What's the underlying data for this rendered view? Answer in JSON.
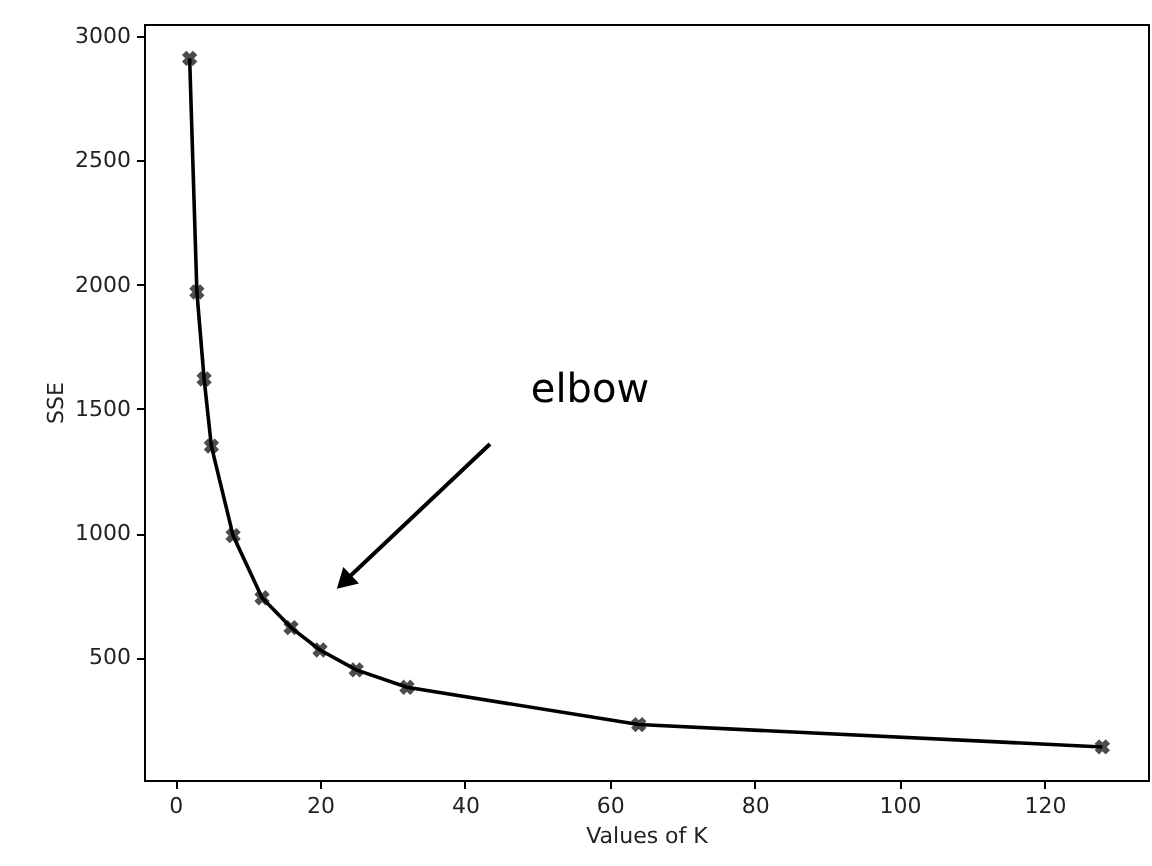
{
  "chart_data": {
    "type": "line",
    "xlabel": "Values of K",
    "ylabel": "SSE",
    "x": [
      2,
      3,
      4,
      5,
      8,
      12,
      16,
      20,
      25,
      32,
      64,
      128
    ],
    "series": [
      {
        "color": "#000000",
        "values": [
          2910,
          1970,
          1620,
          1350,
          990,
          740,
          620,
          530,
          450,
          380,
          230,
          140
        ]
      }
    ],
    "xlim": [
      -4.3,
      134.3
    ],
    "xticks": [
      0,
      20,
      40,
      60,
      80,
      100,
      120
    ],
    "ylim": [
      7,
      3048
    ],
    "yticks": [
      500,
      1000,
      1500,
      2000,
      2500,
      3000
    ],
    "annotations": [
      "elbow"
    ],
    "grid": false,
    "marker": "cross",
    "line_style": "solid"
  }
}
